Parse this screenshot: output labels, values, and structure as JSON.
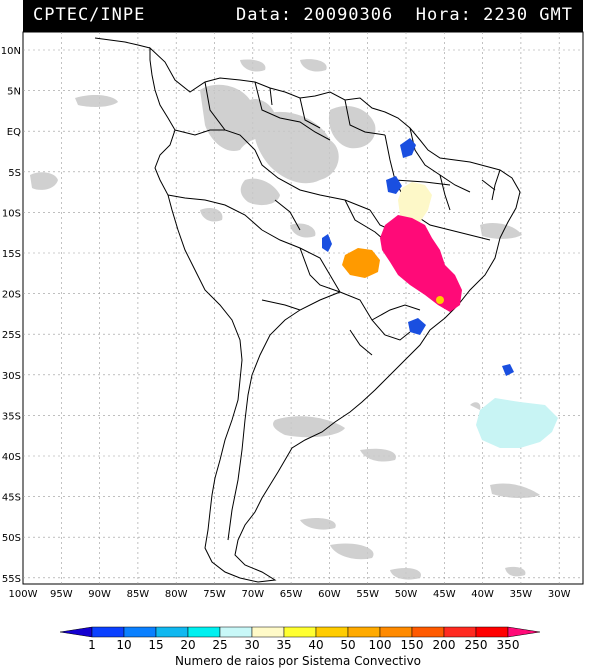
{
  "header": {
    "source": "CPTEC/INPE",
    "datetime": "Data: 20090306  Hora: 2230 GMT"
  },
  "map": {
    "lat_labels": [
      "10N",
      "5N",
      "EQ",
      "5S",
      "10S",
      "15S",
      "20S",
      "25S",
      "30S",
      "35S",
      "40S",
      "45S",
      "50S",
      "55S"
    ],
    "lon_labels": [
      "100W",
      "95W",
      "90W",
      "85W",
      "80W",
      "75W",
      "70W",
      "65W",
      "60W",
      "55W",
      "50W",
      "45W",
      "40W",
      "35W",
      "30W"
    ],
    "regions": [
      {
        "name": "magenta-cluster",
        "color": "#ff0a78",
        "level": "250-350"
      },
      {
        "name": "orange-cluster",
        "color": "#ff9a00",
        "level": "100"
      },
      {
        "name": "pale-yellow-cluster",
        "color": "#fdf8c8",
        "level": "30"
      },
      {
        "name": "blue-cluster",
        "color": "#1a4fe0",
        "level": "1-10"
      },
      {
        "name": "light-cyan-cluster",
        "color": "#c8f4f4",
        "level": "25"
      }
    ]
  },
  "colorbar": {
    "labels": [
      "1",
      "10",
      "15",
      "20",
      "25",
      "30",
      "35",
      "40",
      "50",
      "100",
      "150",
      "200",
      "250",
      "350"
    ],
    "colors": [
      "#1400d0",
      "#0a40ff",
      "#0a80ff",
      "#10b8f0",
      "#00f0f0",
      "#c8f8f8",
      "#fffac8",
      "#ffff30",
      "#ffcc00",
      "#ffaa00",
      "#ff8a00",
      "#ff5a00",
      "#ff2a20",
      "#ff0000",
      "#ff0a78"
    ],
    "title": "Numero de raios por Sistema Convectivo"
  }
}
